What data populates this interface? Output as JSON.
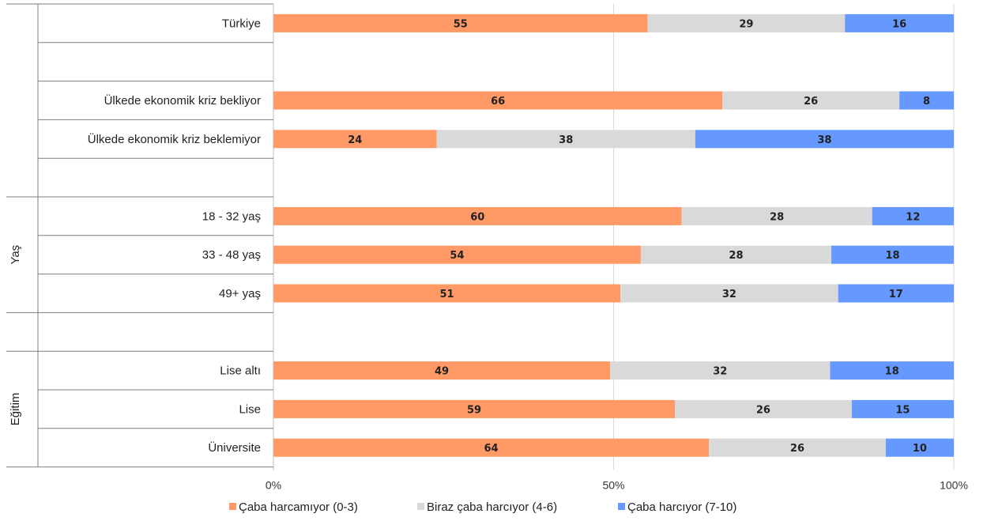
{
  "chart_data": {
    "type": "bar",
    "orientation": "horizontal",
    "stacked": true,
    "percent_scale": true,
    "xlim": [
      0,
      100
    ],
    "x_ticks": [
      "0%",
      "50%",
      "100%"
    ],
    "grid": true,
    "legend_position": "bottom",
    "rows": [
      {
        "label": "Türkiye",
        "group": "",
        "values": [
          55,
          29,
          16
        ]
      },
      {
        "label": "",
        "group": "",
        "values": null
      },
      {
        "label": "Ülkede ekonomik kriz bekliyor",
        "group": "",
        "values": [
          66,
          26,
          8
        ]
      },
      {
        "label": "Ülkede ekonomik kriz beklemiyor",
        "group": "",
        "values": [
          24,
          38,
          38
        ]
      },
      {
        "label": "",
        "group": "",
        "values": null
      },
      {
        "label": "18 - 32 yaş",
        "group": "Yaş",
        "values": [
          60,
          28,
          12
        ]
      },
      {
        "label": "33 - 48 yaş",
        "group": "Yaş",
        "values": [
          54,
          28,
          18
        ]
      },
      {
        "label": "49+ yaş",
        "group": "Yaş",
        "values": [
          51,
          32,
          17
        ]
      },
      {
        "label": "",
        "group": "",
        "values": null
      },
      {
        "label": "Lise altı",
        "group": "Eğitim",
        "values": [
          49,
          32,
          18
        ]
      },
      {
        "label": "Lise",
        "group": "Eğitim",
        "values": [
          59,
          26,
          15
        ]
      },
      {
        "label": "Üniversite",
        "group": "Eğitim",
        "values": [
          64,
          26,
          10
        ]
      }
    ],
    "groups": [
      {
        "name": "Yaş",
        "first_row": 5,
        "last_row": 7
      },
      {
        "name": "Eğitim",
        "first_row": 9,
        "last_row": 11
      }
    ],
    "series": [
      {
        "name": "Çaba harcamıyor (0-3)",
        "color": "#ff9966"
      },
      {
        "name": "Biraz çaba harcıyor (4-6)",
        "color": "#d9d9d9"
      },
      {
        "name": "Çaba harcıyor (7-10)",
        "color": "#6699ff"
      }
    ]
  }
}
